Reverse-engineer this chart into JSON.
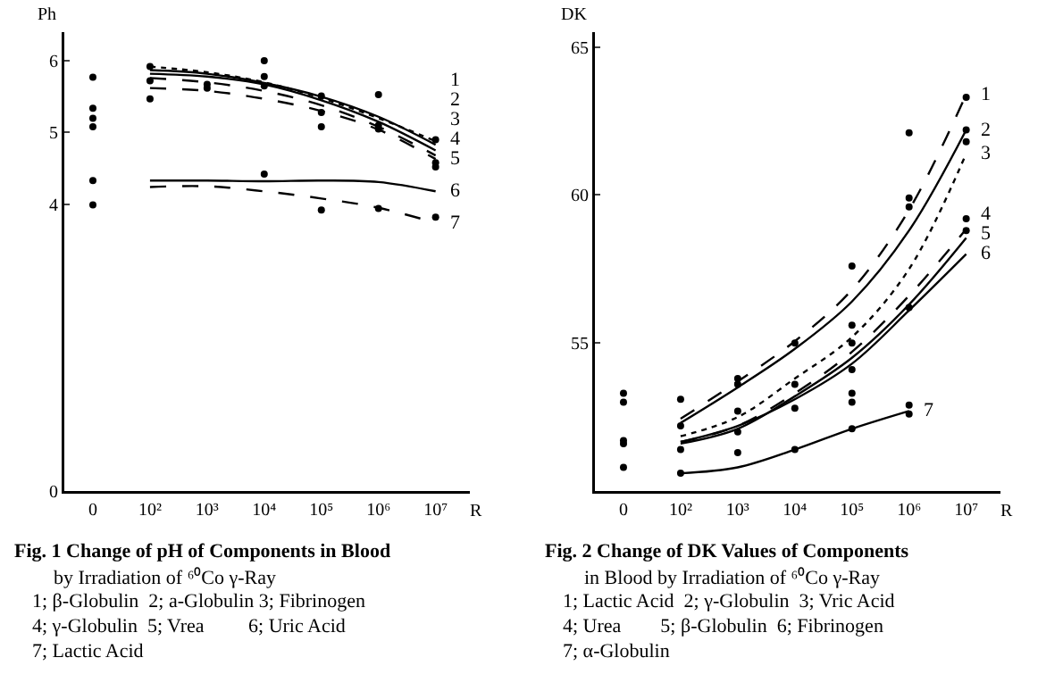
{
  "chart_data": [
    {
      "type": "line",
      "title": "Fig. 1 Change of pH of Components in Blood",
      "subtitle": "by Irradiation of ⁶⁰Co γ-Ray",
      "ylabel": "Ph",
      "xlabel": "R",
      "categories": [
        "0",
        "10²",
        "10³",
        "10⁴",
        "10⁵",
        "10⁶",
        "10⁷"
      ],
      "ylim": [
        0,
        6.4
      ],
      "yticks": [
        0,
        4,
        5,
        6
      ],
      "grid": false,
      "legend": false,
      "annotations": [
        "1; β-Globulin  2; a-Globulin 3; Fibrinogen",
        "4; γ-Globulin  5; Vrea         6; Uric Acid",
        "7; Lactic Acid"
      ],
      "series": [
        {
          "name": "1",
          "color": "#000000",
          "line_style": "dotted",
          "values": [
            null,
            5.92,
            5.84,
            5.7,
            5.48,
            5.2,
            4.88
          ]
        },
        {
          "name": "2",
          "color": "#000000",
          "line_style": "solid",
          "values": [
            null,
            5.87,
            5.82,
            5.69,
            5.5,
            5.22,
            4.83
          ]
        },
        {
          "name": "3",
          "color": "#000000",
          "line_style": "solid",
          "values": [
            null,
            5.82,
            5.78,
            5.67,
            5.45,
            5.15,
            4.75
          ]
        },
        {
          "name": "4",
          "color": "#000000",
          "line_style": "dashed",
          "values": [
            null,
            5.76,
            5.7,
            5.58,
            5.38,
            5.08,
            4.68
          ]
        },
        {
          "name": "5",
          "color": "#000000",
          "line_style": "dashed",
          "values": [
            null,
            5.62,
            5.58,
            5.47,
            5.3,
            5.04,
            4.63
          ]
        },
        {
          "name": "6",
          "color": "#000000",
          "line_style": "solid",
          "values": [
            null,
            4.33,
            4.33,
            4.32,
            4.33,
            4.31,
            4.18
          ]
        },
        {
          "name": "7",
          "color": "#000000",
          "line_style": "dashed",
          "values": [
            null,
            4.24,
            4.25,
            4.18,
            4.08,
            3.95,
            3.74
          ]
        },
        {
          "type": "scatter",
          "color": "#000000",
          "marker": "circle",
          "x": [
            "0",
            "0",
            "0",
            "0",
            "0",
            "0",
            "0",
            "10²",
            "10²",
            "10²",
            "10²",
            "10³",
            "10³",
            "10⁴",
            "10⁴",
            "10⁴",
            "10⁴",
            "10⁴",
            "10⁵",
            "10⁵",
            "10⁵",
            "10⁵",
            "10⁶",
            "10⁶",
            "10⁶",
            "10⁶",
            "10⁶",
            "10⁷",
            "10⁷",
            "10⁷",
            "10⁷"
          ],
          "values": [
            5.77,
            5.34,
            5.2,
            null,
            5.08,
            4.33,
            3.99,
            5.92,
            null,
            5.72,
            5.47,
            5.67,
            5.62,
            6.0,
            null,
            5.78,
            5.65,
            4.42,
            5.51,
            5.28,
            5.08,
            3.92,
            null,
            5.53,
            5.1,
            5.05,
            3.94,
            4.9,
            4.58,
            4.52,
            3.82
          ]
        }
      ]
    },
    {
      "type": "line",
      "title": "Fig. 2 Change of DK Values of Components",
      "subtitle": "in Blood by Irradiation of ⁶⁰Co γ-Ray",
      "ylabel": "DK",
      "xlabel": "R",
      "categories": [
        "0",
        "10²",
        "10³",
        "10⁴",
        "10⁵",
        "10⁶",
        "10⁷"
      ],
      "ylim": [
        50,
        65.5
      ],
      "yticks": [
        55,
        60,
        65
      ],
      "grid": false,
      "legend": false,
      "annotations": [
        "1; Lactic Acid  2; γ-Globulin  3; Vric Acid",
        "4; Urea        5; β-Globulin  6; Fibrinogen",
        "7; α-Globulin"
      ],
      "series": [
        {
          "name": "1",
          "color": "#000000",
          "line_style": "dashed",
          "values": [
            null,
            52.44,
            53.7,
            55.06,
            56.8,
            59.5,
            63.4
          ]
        },
        {
          "name": "2",
          "color": "#000000",
          "line_style": "solid",
          "values": [
            null,
            52.3,
            53.5,
            54.8,
            56.4,
            58.8,
            62.2
          ]
        },
        {
          "name": "3",
          "color": "#000000",
          "line_style": "dotted",
          "values": [
            null,
            51.85,
            52.5,
            53.8,
            55.2,
            57.5,
            61.4
          ]
        },
        {
          "name": "4",
          "color": "#000000",
          "line_style": "dashed",
          "values": [
            null,
            51.66,
            52.2,
            53.3,
            54.7,
            56.6,
            58.85
          ]
        },
        {
          "name": "5",
          "color": "#000000",
          "line_style": "solid",
          "values": [
            null,
            51.6,
            52.1,
            53.2,
            54.5,
            56.3,
            58.55
          ]
        },
        {
          "name": "6",
          "color": "#000000",
          "line_style": "solid",
          "values": [
            null,
            51.66,
            52.2,
            53.1,
            54.3,
            56.1,
            58.0
          ]
        },
        {
          "name": "7",
          "color": "#000000",
          "line_style": "solid",
          "values": [
            null,
            50.6,
            50.8,
            51.4,
            52.1,
            52.7,
            null
          ]
        },
        {
          "type": "scatter",
          "color": "#000000",
          "marker": "circle",
          "x": [
            "0",
            "0",
            "0",
            "0",
            "0",
            "10²",
            "10²",
            "10²",
            "10²",
            "10³",
            "10³",
            "10³",
            "10³",
            "10³",
            "10⁴",
            "10⁴",
            "10⁴",
            "10⁴",
            "10⁵",
            "10⁵",
            "10⁵",
            "10⁵",
            "10⁵",
            "10⁵",
            "10⁵",
            "10⁶",
            "10⁶",
            "10⁶",
            "10⁶",
            "10⁶",
            "10⁶",
            "10⁷",
            "10⁷",
            "10⁷",
            "10⁷",
            "10⁷"
          ],
          "values": [
            53.3,
            53.0,
            51.7,
            51.6,
            50.8,
            53.1,
            52.2,
            51.4,
            50.6,
            53.8,
            53.6,
            52.7,
            52.0,
            51.3,
            55.0,
            53.6,
            52.8,
            51.4,
            57.6,
            55.6,
            55.0,
            54.1,
            53.3,
            53.0,
            52.1,
            62.1,
            59.9,
            59.6,
            56.2,
            52.9,
            52.6,
            63.3,
            62.2,
            61.8,
            59.2,
            58.8
          ]
        }
      ]
    }
  ]
}
